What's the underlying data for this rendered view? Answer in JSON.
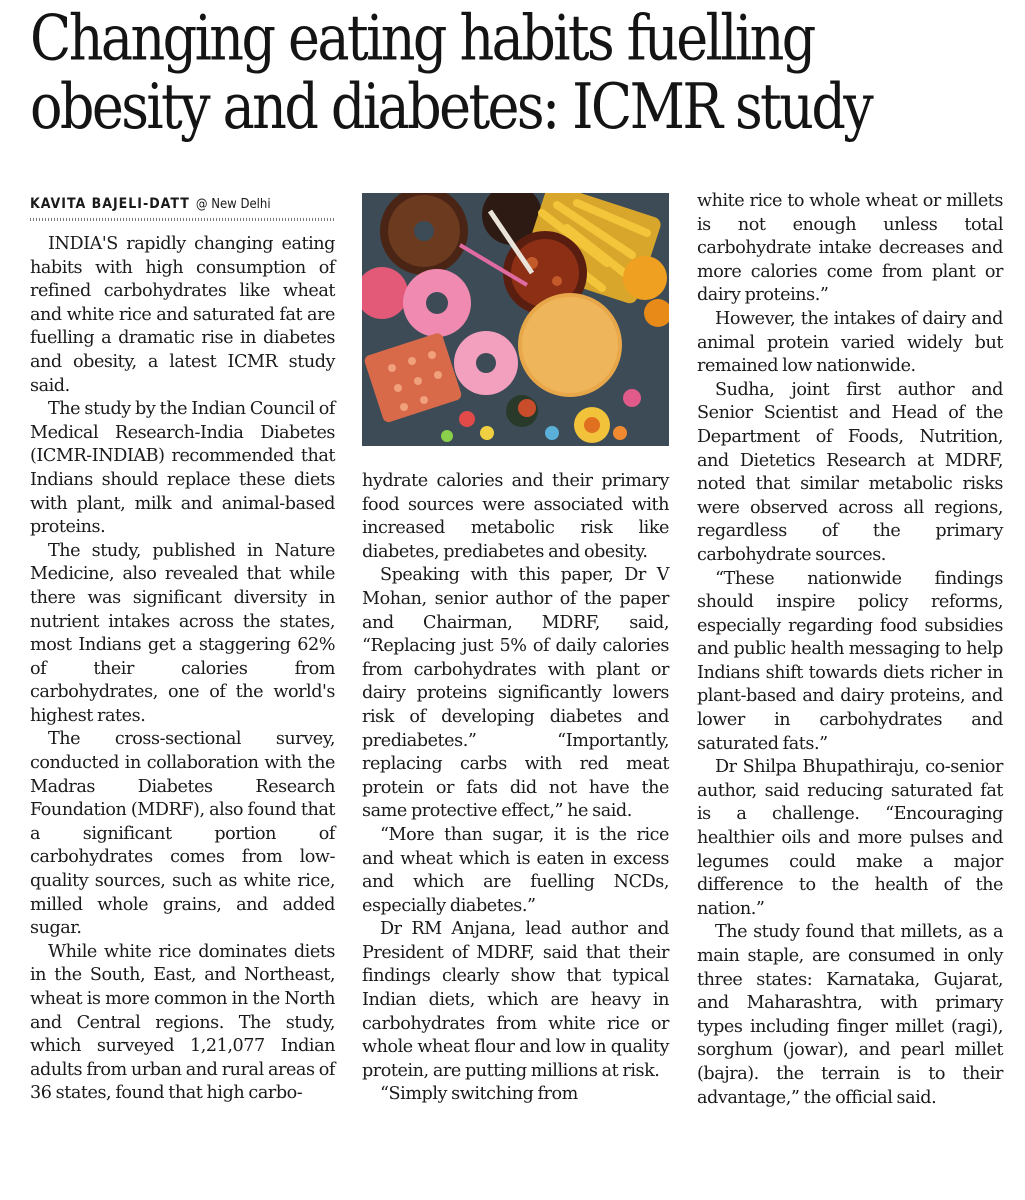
{
  "headline": "Changing eating habits fuelling obesity and diabetes: ICMR study",
  "byline": {
    "author": "KAVITA BAJELI-DATT",
    "location": "@ New Delhi"
  },
  "photo": {
    "subject": "assorted junk food: doughnuts, fries, biscuits, candies and a soft drink"
  },
  "column1": [
    "INDIA'S rapidly changing eating habits with high consumption of refined carbohydrates like wheat and white rice and saturated fat are fuelling a dramatic rise in diabetes and obesity, a latest ICMR study said.",
    "The study by the Indian Council of Medical Research-India Diabetes (ICMR-INDIAB) recommended that Indians should replace these diets with plant, milk and animal-based proteins.",
    "The study, published in Nature Medicine, also revealed that while there was significant diversity in nutrient intakes across the states, most Indians get a staggering 62% of their calories from carbohydrates, one of the world's highest rates.",
    "The cross-sectional survey, conducted in collaboration with the Madras Diabetes Research Foundation (MDRF), also found that a significant portion of carbohydrates comes from low-quality sources, such as white rice, milled whole grains, and added sugar.",
    "While white rice dominates diets in the South, East, and Northeast, wheat is more common in the North and Central regions. The study, which surveyed 1,21,077 Indian adults from urban and rural areas of 36 states, found that high carbo-"
  ],
  "column2_continued": "hydrate calories and their primary food sources were associated with increased metabolic risk like diabetes, prediabetes and obesity.",
  "column2": [
    "Speaking with this paper, Dr V Mohan, senior author of the paper and Chairman, MDRF, said, “Replacing just 5% of daily calories from carbohydrates with plant or dairy proteins significantly lowers risk of developing diabetes and prediabetes.” “Importantly, replacing carbs with red meat protein or fats did not have the same protective effect,” he said.",
    "“More than sugar, it is the rice and wheat which is eaten in excess and which are fuelling NCDs, especially diabetes.”",
    "Dr RM Anjana, lead author and President of MDRF, said that their findings clearly show that typical Indian diets, which are heavy in carbohydrates from white rice or whole wheat flour and low in quality protein, are putting millions at risk.",
    "“Simply switching from"
  ],
  "column3_continued": "white rice to whole wheat or millets is not enough unless total carbohydrate intake decreases and more calories come from plant or dairy proteins.”",
  "column3": [
    "However, the intakes of dairy and animal protein varied widely but remained low nationwide.",
    "Sudha, joint first author and Senior Scientist and Head of the Department of Foods, Nutrition, and Dietetics Research at MDRF, noted that similar metabolic risks were observed across all regions, regardless of the primary carbohydrate sources.",
    "“These nationwide findings should inspire policy reforms, especially regarding food subsidies and public health messaging to help Indians shift towards diets richer in plant-based and dairy proteins, and lower in carbohydrates and saturated fats.”",
    "Dr Shilpa Bhupathiraju, co-senior author, said reducing saturated fat is a challenge. “Encouraging healthier oils and more pulses and legumes could make a major difference to the health of the nation.”",
    "The study found that millets, as a main staple, are consumed in only three states: Karnataka, Gujarat, and Maharashtra, with primary types including finger millet (ragi), sorghum (jowar), and pearl millet (bajra). the terrain is to their advantage,” the official said."
  ]
}
